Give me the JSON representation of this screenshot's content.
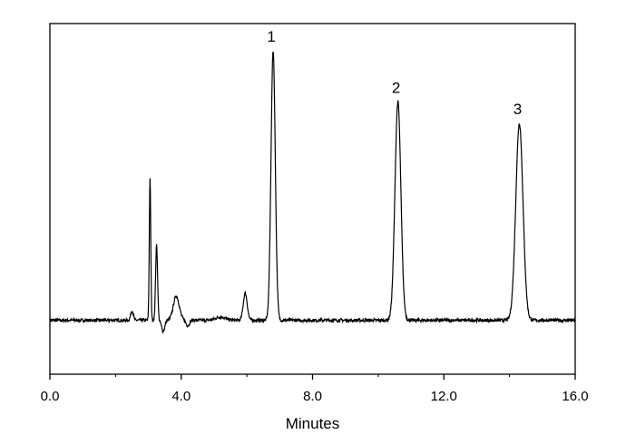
{
  "chart_data": {
    "type": "line",
    "title": "",
    "xlabel": "Minutes",
    "ylabel": "",
    "xlim": [
      0,
      16
    ],
    "ylim": [
      -0.2,
      1.1
    ],
    "x_ticks": [
      0,
      4,
      8,
      12,
      16
    ],
    "x_tick_labels": [
      "0.0",
      "4.0",
      "8.0",
      "12.0",
      "16.0"
    ],
    "grid": false,
    "baseline": 0,
    "series": [
      {
        "peaks": [
          {
            "t": 2.5,
            "h": 0.035,
            "w": 0.04
          },
          {
            "t": 3.05,
            "h": 0.53,
            "w": 0.022
          },
          {
            "t": 3.25,
            "h": 0.28,
            "w": 0.03
          },
          {
            "t": 3.45,
            "h": -0.04,
            "w": 0.05
          },
          {
            "t": 3.85,
            "h": 0.09,
            "w": 0.09
          },
          {
            "t": 4.2,
            "h": -0.02,
            "w": 0.05
          },
          {
            "t": 5.2,
            "h": 0.012,
            "w": 0.15
          },
          {
            "t": 5.95,
            "h": 0.1,
            "w": 0.06
          },
          {
            "t": 6.8,
            "h": 1.0,
            "w": 0.065
          },
          {
            "t": 10.6,
            "h": 0.81,
            "w": 0.09
          },
          {
            "t": 14.3,
            "h": 0.73,
            "w": 0.11
          }
        ]
      }
    ],
    "annotations": [
      {
        "text": "1",
        "x": 6.8,
        "y": 1.0
      },
      {
        "text": "2",
        "x": 10.6,
        "y": 0.81
      },
      {
        "text": "3",
        "x": 14.3,
        "y": 0.73
      }
    ]
  }
}
